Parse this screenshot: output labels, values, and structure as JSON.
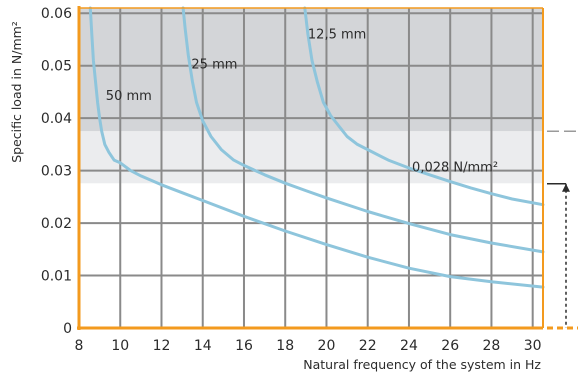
{
  "chart_data": {
    "type": "line",
    "xlabel": "Natural frequency of the system in Hz",
    "ylabel": "Specific load in N/mm²",
    "xlim": [
      8,
      30.5
    ],
    "ylim": [
      0,
      0.061
    ],
    "x_ticks": [
      "8",
      "10",
      "12",
      "14",
      "16",
      "18",
      "20",
      "22",
      "24",
      "26",
      "28",
      "30"
    ],
    "y_ticks": [
      "0",
      "0.01",
      "0.02",
      "0.03",
      "0.04",
      "0.05",
      "0.06"
    ],
    "grid": true,
    "bands": [
      {
        "name": "upper-band",
        "y_from": 0.0375,
        "y_to": 0.061,
        "color": "#d3d5d8"
      },
      {
        "name": "middle-band",
        "y_from": 0.0275,
        "y_to": 0.0375,
        "color": "#ebecee"
      }
    ],
    "series": [
      {
        "name": "50 mm",
        "label_x": 9.3,
        "label_y": 0.0435,
        "x": [
          8.55,
          8.62,
          8.7,
          8.8,
          8.9,
          9.0,
          9.1,
          9.25,
          9.45,
          9.7,
          10.0,
          10.5,
          11.0,
          12.0,
          13.0,
          14.0,
          16.0,
          18.0,
          20.0,
          22.0,
          24.0,
          26.0,
          28.0,
          30.5
        ],
        "y": [
          0.061,
          0.056,
          0.051,
          0.047,
          0.043,
          0.04,
          0.0375,
          0.035,
          0.0335,
          0.032,
          0.0315,
          0.03,
          0.029,
          0.0273,
          0.0258,
          0.0243,
          0.0213,
          0.0185,
          0.0159,
          0.0135,
          0.0114,
          0.0098,
          0.0088,
          0.0078
        ]
      },
      {
        "name": "25 mm",
        "label_x": 13.45,
        "label_y": 0.0495,
        "x": [
          13.05,
          13.15,
          13.3,
          13.5,
          13.7,
          14.0,
          14.4,
          14.9,
          15.5,
          16.0,
          17.0,
          18.0,
          19.0,
          20.0,
          22.0,
          24.0,
          26.0,
          28.0,
          30.5
        ],
        "y": [
          0.061,
          0.057,
          0.052,
          0.047,
          0.043,
          0.0395,
          0.0365,
          0.034,
          0.032,
          0.031,
          0.0292,
          0.0276,
          0.0262,
          0.0248,
          0.0222,
          0.0199,
          0.0178,
          0.0162,
          0.0145
        ]
      },
      {
        "name": "12,5 mm",
        "label_x": 19.1,
        "label_y": 0.0552,
        "x": [
          18.95,
          19.1,
          19.3,
          19.55,
          19.85,
          20.2,
          20.6,
          21.0,
          21.5,
          22.0,
          23.0,
          24.0,
          25.0,
          26.0,
          27.0,
          28.0,
          29.0,
          30.5
        ],
        "y": [
          0.061,
          0.056,
          0.051,
          0.047,
          0.043,
          0.0405,
          0.0385,
          0.0365,
          0.035,
          0.034,
          0.032,
          0.0305,
          0.0292,
          0.0279,
          0.0267,
          0.0256,
          0.0246,
          0.0235
        ]
      }
    ],
    "annotations": [
      {
        "name": "band-label",
        "text": "0,028 N/mm²",
        "x": 24.15,
        "y": 0.0298
      }
    ],
    "colors": {
      "curve": "#8ec5dc",
      "axis": "#f39a1e",
      "grid": "#8a8a8a",
      "indicator": "#2b2b2b",
      "minor_grid": "#ffffff"
    }
  }
}
